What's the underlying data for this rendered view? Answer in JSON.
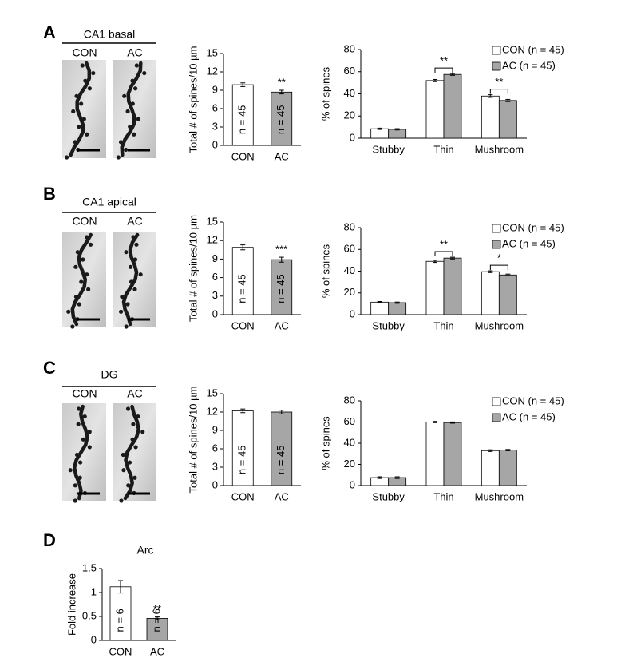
{
  "panels": [
    {
      "letter": "A",
      "region": "CA1 basal",
      "image_labels": [
        "CON",
        "AC"
      ]
    },
    {
      "letter": "B",
      "region": "CA1 apical",
      "image_labels": [
        "CON",
        "AC"
      ]
    },
    {
      "letter": "C",
      "region": "DG",
      "image_labels": [
        "CON",
        "AC"
      ]
    },
    {
      "letter": "D"
    }
  ],
  "chart_data": [
    {
      "type": "bar",
      "ylabel": "Total # of spines/10 µm",
      "categories": [
        "CON",
        "AC"
      ],
      "values": [
        9.9,
        8.7
      ],
      "errors": [
        0.3,
        0.3
      ],
      "colors": [
        "#ffffff",
        "#a6a6a6"
      ],
      "bar_labels": [
        "n = 45",
        "n = 45"
      ],
      "significance": [
        null,
        "**"
      ],
      "ylim": [
        0,
        15
      ],
      "yticks": [
        0,
        3,
        6,
        9,
        12,
        15
      ]
    },
    {
      "type": "bar",
      "ylabel": "% of spines",
      "categories": [
        "Stubby",
        "Thin",
        "Mushroom"
      ],
      "series": [
        {
          "name": "CON (n = 45)",
          "color": "#ffffff",
          "values": [
            8.5,
            52,
            38
          ],
          "errors": [
            0.6,
            1,
            1.2
          ]
        },
        {
          "name": "AC (n = 45)",
          "color": "#a6a6a6",
          "values": [
            8,
            57.5,
            34
          ],
          "errors": [
            0.6,
            0.8,
            1
          ]
        }
      ],
      "significance": [
        null,
        "**",
        "**"
      ],
      "ylim": [
        0,
        80
      ],
      "yticks": [
        0,
        20,
        40,
        60,
        80
      ],
      "legend": "top-right"
    },
    {
      "type": "bar",
      "ylabel": "Total # of spines/10 µm",
      "categories": [
        "CON",
        "AC"
      ],
      "values": [
        10.9,
        8.9
      ],
      "errors": [
        0.4,
        0.4
      ],
      "colors": [
        "#ffffff",
        "#a6a6a6"
      ],
      "bar_labels": [
        "n = 45",
        "n = 45"
      ],
      "significance": [
        null,
        "***"
      ],
      "ylim": [
        0,
        15
      ],
      "yticks": [
        0,
        3,
        6,
        9,
        12,
        15
      ]
    },
    {
      "type": "bar",
      "ylabel": "% of spines",
      "categories": [
        "Stubby",
        "Thin",
        "Mushroom"
      ],
      "series": [
        {
          "name": "CON (n = 45)",
          "color": "#ffffff",
          "values": [
            11.5,
            49,
            39.5
          ],
          "errors": [
            0.6,
            1,
            0.8
          ]
        },
        {
          "name": "AC (n = 45)",
          "color": "#a6a6a6",
          "values": [
            11,
            52,
            36.5
          ],
          "errors": [
            0.6,
            0.8,
            0.8
          ]
        }
      ],
      "significance": [
        null,
        "**",
        "*"
      ],
      "ylim": [
        0,
        80
      ],
      "yticks": [
        0,
        20,
        40,
        60,
        80
      ],
      "legend": "top-right"
    },
    {
      "type": "bar",
      "ylabel": "Total # of spines/10 µm",
      "categories": [
        "CON",
        "AC"
      ],
      "values": [
        12.2,
        12.0
      ],
      "errors": [
        0.3,
        0.3
      ],
      "colors": [
        "#ffffff",
        "#a6a6a6"
      ],
      "bar_labels": [
        "n = 45",
        "n = 45"
      ],
      "ylim": [
        0,
        15
      ],
      "yticks": [
        0,
        3,
        6,
        9,
        12,
        15
      ]
    },
    {
      "type": "bar",
      "ylabel": "% of spines",
      "categories": [
        "Stubby",
        "Thin",
        "Mushroom"
      ],
      "series": [
        {
          "name": "CON (n = 45)",
          "color": "#ffffff",
          "values": [
            7.5,
            60,
            33
          ],
          "errors": [
            0.8,
            0.6,
            0.8
          ]
        },
        {
          "name": "AC (n = 45)",
          "color": "#a6a6a6",
          "values": [
            7.5,
            59.5,
            33.5
          ],
          "errors": [
            0.8,
            0.6,
            0.6
          ]
        }
      ],
      "ylim": [
        0,
        80
      ],
      "yticks": [
        0,
        20,
        40,
        60,
        80
      ],
      "legend": "top-right"
    },
    {
      "type": "bar",
      "title": "Arc",
      "ylabel": "Fold increase",
      "categories": [
        "CON",
        "AC"
      ],
      "values": [
        1.12,
        0.46
      ],
      "errors": [
        0.13,
        0.03
      ],
      "colors": [
        "#ffffff",
        "#a6a6a6"
      ],
      "bar_labels": [
        "n = 6",
        "n = 6"
      ],
      "significance": [
        null,
        "**"
      ],
      "ylim": [
        0,
        1.5
      ],
      "yticks": [
        0,
        0.5,
        1,
        1.5
      ]
    }
  ]
}
